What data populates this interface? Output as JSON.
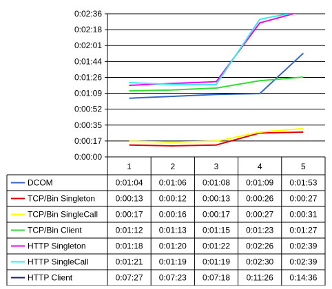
{
  "chart_data": {
    "type": "line",
    "categories": [
      "1",
      "2",
      "3",
      "4",
      "5"
    ],
    "y_tick_labels": [
      "0:00:00",
      "0:00:17",
      "0:00:35",
      "0:00:52",
      "0:01:09",
      "0:01:26",
      "0:01:44",
      "0:02:01",
      "0:02:18",
      "0:02:36"
    ],
    "ylim_seconds": [
      0,
      156
    ],
    "grid": true,
    "legend": "data-table-below",
    "series": [
      {
        "name": "DCOM",
        "color": "#3366cc",
        "table_values": [
          "0:01:04",
          "0:01:06",
          "0:01:08",
          "0:01:09",
          "0:01:53"
        ],
        "values": [
          64,
          66,
          68,
          69,
          113
        ]
      },
      {
        "name": "TCP/Bin Singleton",
        "color": "#e00000",
        "table_values": [
          "0:00:13",
          "0:00:12",
          "0:00:13",
          "0:00:26",
          "0:00:27"
        ],
        "values": [
          13,
          12,
          13,
          26,
          27
        ]
      },
      {
        "name": "TCP/Bin SingleCall",
        "color": "#ffff00",
        "table_values": [
          "0:00:17",
          "0:00:16",
          "0:00:17",
          "0:00:27",
          "0:00:31"
        ],
        "values": [
          17,
          16,
          17,
          27,
          31
        ]
      },
      {
        "name": "TCP/Bin Client",
        "color": "#33dd33",
        "table_values": [
          "0:01:12",
          "0:01:13",
          "0:01:15",
          "0:01:23",
          "0:01:27"
        ],
        "values": [
          72,
          73,
          75,
          83,
          87
        ]
      },
      {
        "name": "HTTP Singleton",
        "color": "#ee00ee",
        "table_values": [
          "0:01:18",
          "0:01:20",
          "0:01:22",
          "0:02:26",
          "0:02:39"
        ],
        "values": [
          78,
          80,
          82,
          146,
          159
        ]
      },
      {
        "name": "HTTP SingleCall",
        "color": "#33eeee",
        "table_values": [
          "0:01:21",
          "0:01:19",
          "0:01:19",
          "0:02:30",
          "0:02:39"
        ],
        "values": [
          81,
          79,
          79,
          150,
          159
        ]
      },
      {
        "name": "HTTP Client",
        "color": "#1a1a80",
        "table_values": [
          "0:07:27",
          "0:07:23",
          "0:07:18",
          "0:11:26",
          "0:14:36"
        ],
        "values": [
          447,
          443,
          438,
          686,
          876
        ]
      }
    ]
  }
}
